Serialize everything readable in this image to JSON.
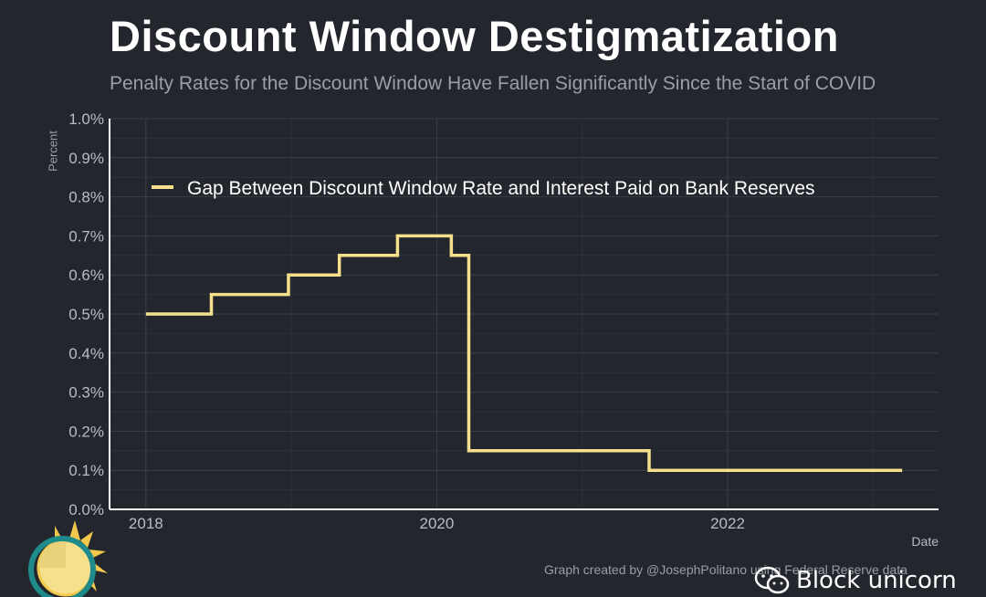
{
  "header": {
    "title": "Discount Window Destigmatization",
    "subtitle": "Penalty Rates for the Discount Window Have Fallen Significantly Since the Start of COVID"
  },
  "footer": {
    "credit": "Graph created by @JosephPolitano using Federal Reserve data",
    "watermark": "Block unicorn"
  },
  "colors": {
    "background": "#23262d",
    "line": "#f7e08c",
    "grid": "#3a3e47",
    "axis": "#ffffff"
  },
  "chart_data": {
    "type": "line",
    "title": "Discount Window Destigmatization",
    "subtitle": "Penalty Rates for the Discount Window Have Fallen Significantly Since the Start of COVID",
    "xlabel": "Date",
    "ylabel": "Percent",
    "xlim": [
      2017.75,
      2023.45
    ],
    "ylim": [
      0,
      1.0
    ],
    "x_ticks": [
      2018,
      2020,
      2022
    ],
    "x_tick_labels": [
      "2018",
      "2020",
      "2022"
    ],
    "y_ticks": [
      0,
      0.1,
      0.2,
      0.3,
      0.4,
      0.5,
      0.6,
      0.7,
      0.8,
      0.9,
      1.0
    ],
    "y_tick_labels": [
      "0.0%",
      "0.1%",
      "0.2%",
      "0.3%",
      "0.4%",
      "0.5%",
      "0.6%",
      "0.7%",
      "0.8%",
      "0.9%",
      "1.0%"
    ],
    "grid": true,
    "legend_position": "top",
    "series": [
      {
        "name": "Gap Between Discount Window Rate and Interest Paid on Bank Reserves",
        "step": true,
        "x": [
          2018.0,
          2018.45,
          2018.98,
          2019.33,
          2019.73,
          2020.1,
          2020.22,
          2021.46,
          2023.2
        ],
        "y": [
          0.5,
          0.55,
          0.6,
          0.65,
          0.7,
          0.65,
          0.15,
          0.1,
          0.1
        ]
      }
    ]
  }
}
